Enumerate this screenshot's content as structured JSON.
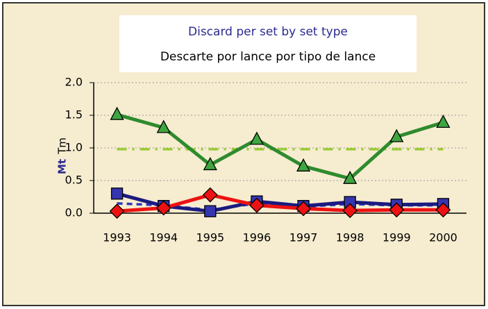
{
  "chart_data": {
    "type": "line",
    "title": "Discard per set by set type",
    "subtitle": "Descarte por lance por tipo de lance",
    "ylabel": {
      "en": "Mt",
      "es": "Tm"
    },
    "categories": [
      "1993",
      "1994",
      "1995",
      "1996",
      "1997",
      "1998",
      "1999",
      "2000"
    ],
    "series": [
      {
        "color": "#99cc33",
        "dash": "dashdot",
        "marker": null,
        "values": [
          0.98,
          0.98,
          0.98,
          0.98,
          0.98,
          0.98,
          0.98,
          0.98
        ]
      },
      {
        "color": "#2e8b2e",
        "marker": "triangle",
        "marker_color": "#3fa63f",
        "values": [
          1.51,
          1.31,
          0.74,
          1.13,
          0.72,
          0.53,
          1.17,
          1.39
        ]
      },
      {
        "color": "#3333bb",
        "dash": "dashed",
        "marker": null,
        "values": [
          0.15,
          0.12,
          0.05,
          0.15,
          0.1,
          0.14,
          0.12,
          0.12
        ]
      },
      {
        "color": "#1a1a80",
        "marker": "square",
        "marker_color": "#3535b0",
        "values": [
          0.3,
          0.11,
          0.03,
          0.18,
          0.11,
          0.17,
          0.13,
          0.14
        ]
      },
      {
        "color": "#ee1111",
        "marker": "diamond",
        "marker_color": "#ee1111",
        "values": [
          0.03,
          0.08,
          0.28,
          0.12,
          0.07,
          0.04,
          0.05,
          0.05
        ]
      }
    ],
    "ylim": [
      0,
      2
    ],
    "yticks": [
      {
        "value": 0,
        "label": "0.0"
      },
      {
        "value": 0.5,
        "label": "0.5"
      },
      {
        "value": 1,
        "label": "1.0"
      },
      {
        "value": 1.5,
        "label": "1.5"
      },
      {
        "value": 2,
        "label": "2.0"
      }
    ],
    "grid": true
  }
}
